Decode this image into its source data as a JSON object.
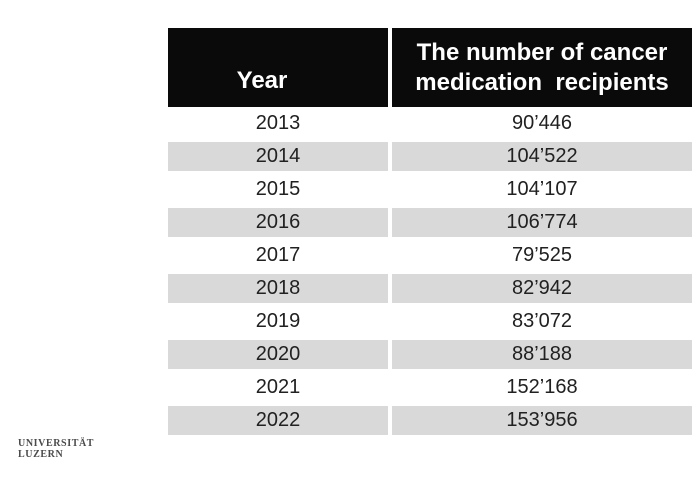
{
  "colors": {
    "page_bg": "#ffffff",
    "header_bg": "#0a0a0a",
    "header_text": "#ffffff",
    "stripe": "#d9d9d9",
    "row_text": "#212121",
    "logo_text": "#4a4a4a"
  },
  "table": {
    "header": {
      "year_label": "Year",
      "value_label": "The number of cancer\nmedication  recipients"
    },
    "rows": [
      {
        "year": "2013",
        "value": "90’446"
      },
      {
        "year": "2014",
        "value": "104’522"
      },
      {
        "year": "2015",
        "value": "104’107"
      },
      {
        "year": "2016",
        "value": "106’774"
      },
      {
        "year": "2017",
        "value": "79’525"
      },
      {
        "year": "2018",
        "value": "82’942"
      },
      {
        "year": "2019",
        "value": "83’072"
      },
      {
        "year": "2020",
        "value": "88’188"
      },
      {
        "year": "2021",
        "value": "152’168"
      },
      {
        "year": "2022",
        "value": "153’956"
      }
    ]
  },
  "footer": {
    "logo_line1": "UNIVERSITÄT",
    "logo_line2": "LUZERN"
  },
  "chart_data": {
    "type": "table",
    "title": "",
    "columns": [
      "Year",
      "The number of cancer medication recipients"
    ],
    "categories": [
      "2013",
      "2014",
      "2015",
      "2016",
      "2017",
      "2018",
      "2019",
      "2020",
      "2021",
      "2022"
    ],
    "values": [
      90446,
      104522,
      104107,
      106774,
      79525,
      82942,
      83072,
      88188,
      152168,
      153956
    ],
    "legend_position": "none",
    "grid": false
  }
}
